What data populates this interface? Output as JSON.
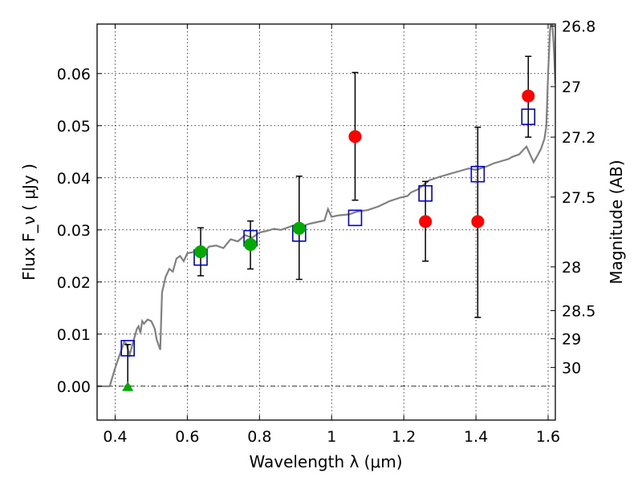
{
  "chart_data": {
    "type": "scatter",
    "title": "",
    "xlabel": "Wavelength  λ (μm)",
    "ylabel": "Flux  F_ν  ( μJy )",
    "ylabel_right": "Magnitude (AB)",
    "xlim": [
      0.35,
      1.62
    ],
    "ylim": [
      -0.0065,
      0.0695
    ],
    "grid": true,
    "x_ticks": [
      0.4,
      0.6,
      0.8,
      1.0,
      1.2,
      1.4,
      1.6
    ],
    "x_tick_labels": [
      "0.4",
      "0.6",
      "0.8",
      "1",
      "1.2",
      "1.4",
      "1.6"
    ],
    "y_ticks": [
      0.0,
      0.01,
      0.02,
      0.03,
      0.04,
      0.05,
      0.06
    ],
    "y_tick_labels": [
      "0.00",
      "0.01",
      "0.02",
      "0.03",
      "0.04",
      "0.05",
      "0.06"
    ],
    "right_ticks": [
      {
        "flux": 0.0691,
        "label": "26.8"
      },
      {
        "flux": 0.0575,
        "label": "27"
      },
      {
        "flux": 0.0478,
        "label": "27.2"
      },
      {
        "flux": 0.0363,
        "label": "27.5"
      },
      {
        "flux": 0.0229,
        "label": "28"
      },
      {
        "flux": 0.0145,
        "label": "28.5"
      },
      {
        "flux": 0.0091,
        "label": "29"
      },
      {
        "flux": 0.0036,
        "label": "30"
      }
    ],
    "model_sed": {
      "color": "#808080",
      "x": [
        0.35,
        0.385,
        0.4,
        0.415,
        0.425,
        0.43,
        0.435,
        0.44,
        0.45,
        0.46,
        0.465,
        0.47,
        0.475,
        0.48,
        0.49,
        0.5,
        0.505,
        0.51,
        0.515,
        0.52,
        0.525,
        0.53,
        0.54,
        0.55,
        0.56,
        0.57,
        0.58,
        0.59,
        0.6,
        0.62,
        0.64,
        0.66,
        0.68,
        0.7,
        0.72,
        0.74,
        0.76,
        0.78,
        0.8,
        0.82,
        0.84,
        0.86,
        0.88,
        0.9,
        0.92,
        0.94,
        0.96,
        0.98,
        0.99,
        1.0,
        1.02,
        1.05,
        1.07,
        1.1,
        1.13,
        1.16,
        1.19,
        1.21,
        1.22,
        1.24,
        1.27,
        1.3,
        1.33,
        1.35,
        1.38,
        1.4,
        1.43,
        1.45,
        1.47,
        1.49,
        1.5,
        1.52,
        1.54,
        1.56,
        1.57,
        1.58,
        1.59,
        1.595,
        1.6,
        1.605,
        1.61,
        1.615,
        1.62
      ],
      "y": [
        0.0,
        0.0,
        0.0035,
        0.0065,
        0.0085,
        0.0082,
        0.0072,
        0.006,
        0.0085,
        0.011,
        0.0115,
        0.0102,
        0.0125,
        0.012,
        0.0128,
        0.0125,
        0.0118,
        0.011,
        0.009,
        0.008,
        0.007,
        0.018,
        0.021,
        0.0225,
        0.022,
        0.0245,
        0.025,
        0.024,
        0.0255,
        0.0258,
        0.0252,
        0.0268,
        0.027,
        0.0265,
        0.0282,
        0.0278,
        0.029,
        0.0285,
        0.0295,
        0.0298,
        0.0302,
        0.03,
        0.0305,
        0.031,
        0.0308,
        0.0312,
        0.0315,
        0.0318,
        0.034,
        0.0325,
        0.0328,
        0.033,
        0.0335,
        0.0338,
        0.0345,
        0.0355,
        0.0362,
        0.0365,
        0.0372,
        0.0378,
        0.0395,
        0.0402,
        0.0408,
        0.0412,
        0.0418,
        0.0415,
        0.0422,
        0.0428,
        0.0432,
        0.0436,
        0.044,
        0.0445,
        0.046,
        0.043,
        0.0442,
        0.0455,
        0.0475,
        0.05,
        0.06,
        0.068,
        0.071,
        0.066,
        0.058
      ]
    },
    "series": [
      {
        "color": "#0000cc",
        "marker": "open-square",
        "x": [
          0.435,
          0.637,
          0.775,
          0.91,
          1.065,
          1.26,
          1.405,
          1.545
        ],
        "y": [
          0.0073,
          0.0247,
          0.0284,
          0.0293,
          0.0323,
          0.037,
          0.0407,
          0.0517
        ]
      },
      {
        "color": "#00aa00",
        "marker": "filled-circle",
        "x": [
          0.637,
          0.775,
          0.91
        ],
        "y": [
          0.0258,
          0.0272,
          0.0303
        ]
      },
      {
        "color": "#ff0000",
        "marker": "filled-circle",
        "x": [
          1.065,
          1.26,
          1.405,
          1.545
        ],
        "y": [
          0.0479,
          0.0316,
          0.0316,
          0.0557
        ]
      },
      {
        "color": "#00aa00",
        "marker": "triangle-up",
        "x": [
          0.435
        ],
        "y": [
          0.0
        ]
      }
    ],
    "error_bars": [
      {
        "x": 0.435,
        "low": 0.0,
        "high": 0.008
      },
      {
        "x": 0.637,
        "low": 0.0212,
        "high": 0.0304
      },
      {
        "x": 0.775,
        "low": 0.0225,
        "high": 0.0317
      },
      {
        "x": 0.91,
        "low": 0.0205,
        "high": 0.0403
      },
      {
        "x": 1.065,
        "low": 0.0357,
        "high": 0.0602
      },
      {
        "x": 1.26,
        "low": 0.024,
        "high": 0.0393
      },
      {
        "x": 1.405,
        "low": 0.0132,
        "high": 0.0497
      },
      {
        "x": 1.545,
        "low": 0.0478,
        "high": 0.0633
      }
    ],
    "zero_line": 0.0
  }
}
